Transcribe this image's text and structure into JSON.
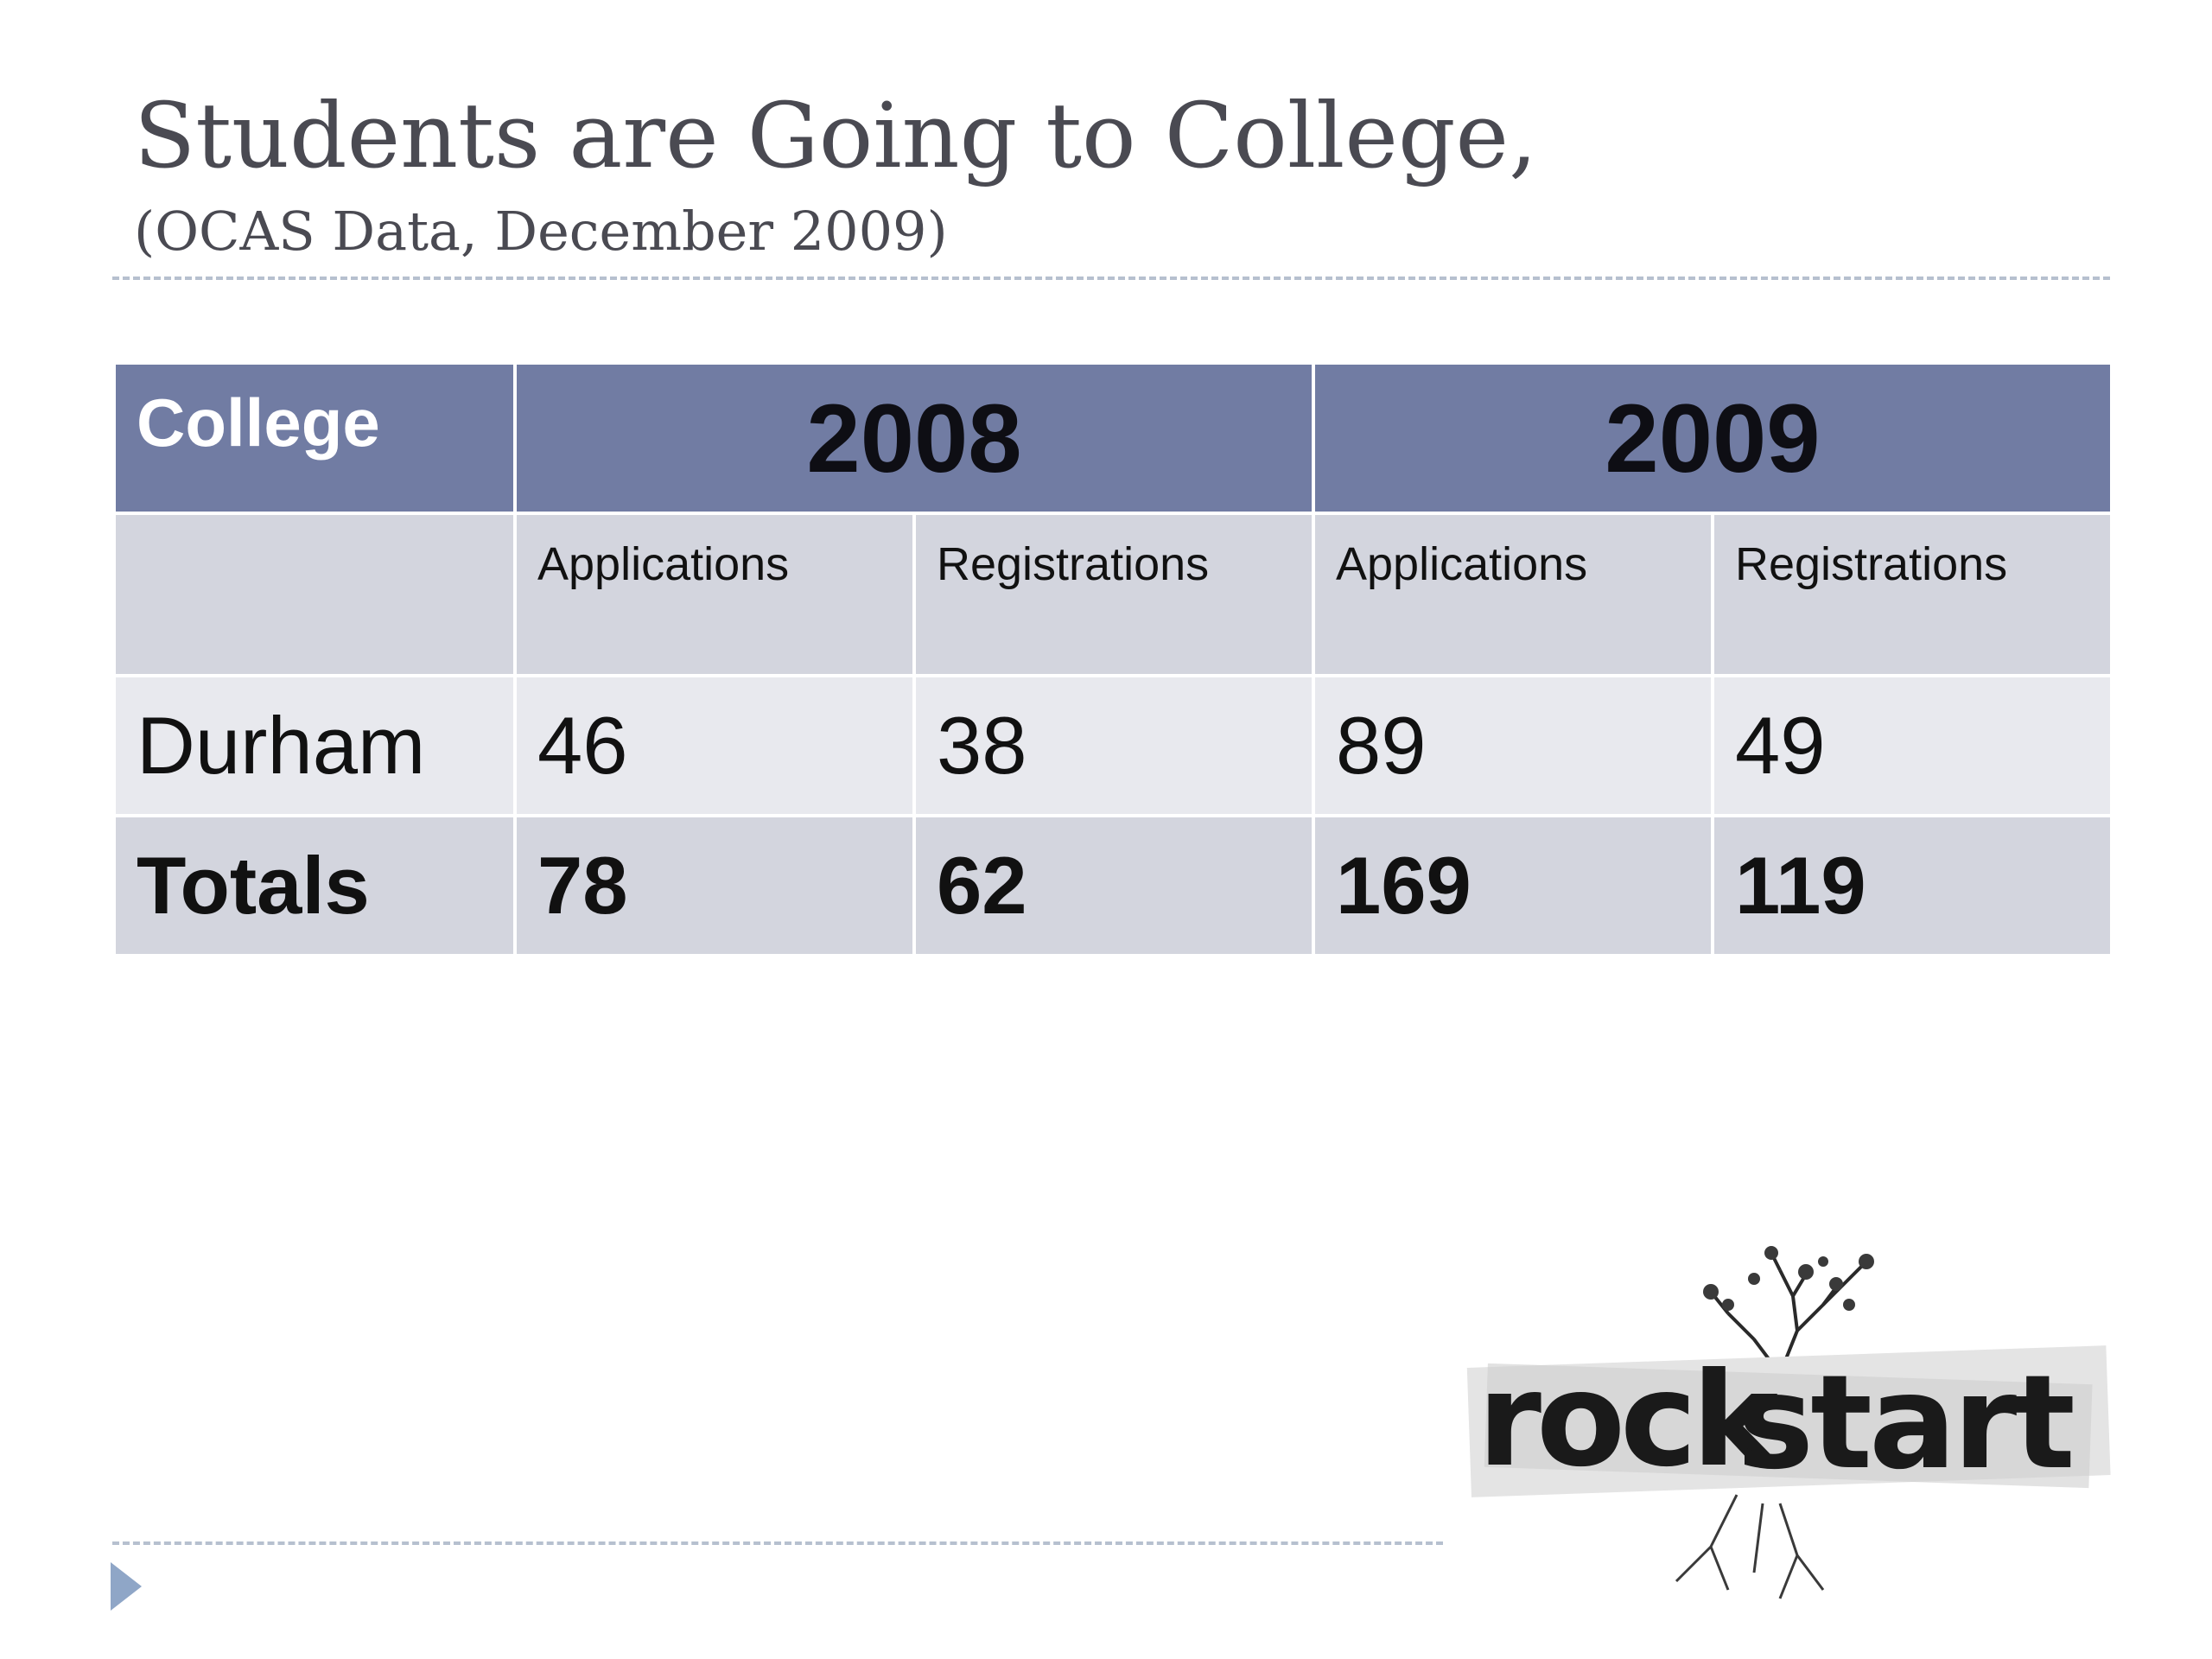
{
  "slide": {
    "title": "Students are Going to College,",
    "subtitle": "(OCAS Data, December 2009)"
  },
  "table": {
    "college_header": "College",
    "years": [
      "2008",
      "2009"
    ],
    "subheaders": [
      "Applications",
      "Registrations",
      "Applications",
      "Registrations"
    ],
    "rows": [
      {
        "label": "Durham",
        "values": [
          "46",
          "38",
          "89",
          "49"
        ]
      },
      {
        "label": "Totals",
        "values": [
          "78",
          "62",
          "169",
          "119"
        ]
      }
    ]
  },
  "logo": {
    "text_part1": "rock",
    "text_part2": "start"
  },
  "colors": {
    "header_bg": "#717ca3",
    "band_dark": "#d3d5de",
    "band_light": "#e8e9ee",
    "title_text": "#4a4a52",
    "rule": "#b6c0cf",
    "nav_arrow": "#8fa6c7"
  },
  "icons": {
    "nav": "triangle-right-icon"
  }
}
